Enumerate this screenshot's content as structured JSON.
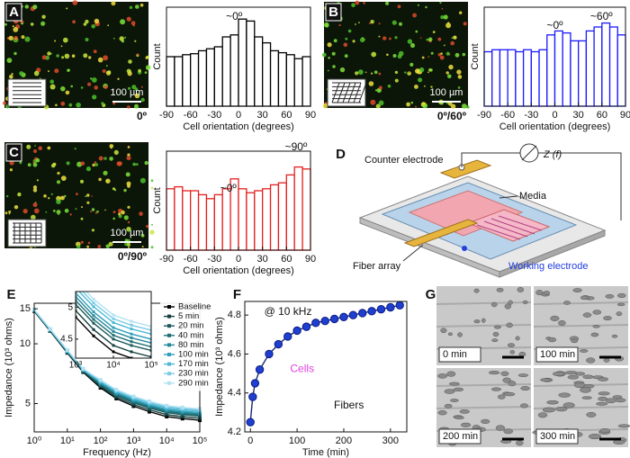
{
  "panel_letters": [
    "A",
    "B",
    "C",
    "D",
    "E",
    "F",
    "G"
  ],
  "images": [
    {
      "scale_bar": "100 µm",
      "pattern": "0º"
    },
    {
      "scale_bar": "100 µm",
      "pattern": "0º/60º"
    },
    {
      "scale_bar": "100 µm",
      "pattern": "0º/90º"
    }
  ],
  "diagram": {
    "counter_electrode": "Counter electrode",
    "impedance": "Z (f)",
    "media": "Media",
    "fiber_array": "Fiber array",
    "working_electrode": "Working electrode"
  },
  "micrographs": {
    "times": [
      "0 min",
      "100 min",
      "200 min",
      "300 min"
    ]
  },
  "chart_data": [
    {
      "type": "histogram",
      "bins": [
        -90,
        -80,
        -70,
        -60,
        -50,
        -40,
        -30,
        -20,
        -10,
        0,
        10,
        20,
        30,
        40,
        50,
        60,
        70,
        80,
        90
      ],
      "counts": [
        50,
        50,
        52,
        53,
        56,
        58,
        60,
        70,
        72,
        88,
        86,
        70,
        64,
        56,
        54,
        52,
        48,
        50
      ],
      "color": "#000000",
      "xlim": [
        -90,
        90
      ],
      "xticks": [
        -90,
        -60,
        -30,
        0,
        30,
        60,
        90
      ],
      "ylim": [
        0,
        100
      ],
      "xlabel": "Cell orientation (degrees)",
      "ylabel": "Count",
      "annotations": [
        "~0º"
      ]
    },
    {
      "type": "histogram",
      "bins": [
        -90,
        -80,
        -70,
        -60,
        -50,
        -40,
        -30,
        -20,
        -10,
        0,
        10,
        20,
        30,
        40,
        50,
        60,
        70,
        80,
        90
      ],
      "counts": [
        55,
        57,
        57,
        57,
        55,
        57,
        55,
        57,
        72,
        76,
        74,
        66,
        66,
        76,
        80,
        84,
        80,
        72
      ],
      "color": "#1a1aff",
      "xlim": [
        -90,
        90
      ],
      "xticks": [
        -90,
        -60,
        -30,
        0,
        30,
        60,
        90
      ],
      "ylim": [
        0,
        100
      ],
      "xlabel": "Cell orientation (degrees)",
      "ylabel": "Count",
      "annotations": [
        "~0º",
        "~60º"
      ]
    },
    {
      "type": "histogram",
      "bins": [
        -90,
        -80,
        -70,
        -60,
        -50,
        -40,
        -30,
        -20,
        -10,
        0,
        10,
        20,
        30,
        40,
        50,
        60,
        70,
        80,
        90
      ],
      "counts": [
        62,
        64,
        60,
        60,
        56,
        52,
        56,
        62,
        72,
        62,
        58,
        60,
        62,
        66,
        68,
        76,
        84,
        82
      ],
      "color": "#e52020",
      "xlim": [
        -90,
        90
      ],
      "xticks": [
        -90,
        -60,
        -30,
        0,
        30,
        60,
        90
      ],
      "ylim": [
        0,
        100
      ],
      "xlabel": "Cell orientation (degrees)",
      "ylabel": "Count",
      "annotations": [
        "~0º",
        "~90º"
      ]
    },
    {
      "type": "line",
      "x": [
        1,
        3,
        10,
        30,
        100,
        300,
        1000,
        3000,
        10000,
        30000,
        100000
      ],
      "series": [
        {
          "name": "Baseline",
          "color": "#000000",
          "values": [
            14.6,
            11.6,
            9.0,
            7.2,
            6.0,
            5.3,
            4.85,
            4.55,
            4.3,
            4.2,
            4.12
          ]
        },
        {
          "name": "5 min",
          "color": "#16403f",
          "values": [
            14.65,
            11.65,
            9.05,
            7.25,
            6.1,
            5.4,
            4.95,
            4.65,
            4.4,
            4.3,
            4.22
          ]
        },
        {
          "name": "20 min",
          "color": "#1c5a5c",
          "values": [
            14.7,
            11.7,
            9.1,
            7.3,
            6.2,
            5.5,
            5.05,
            4.75,
            4.5,
            4.4,
            4.32
          ]
        },
        {
          "name": "40 min",
          "color": "#1f7075",
          "values": [
            14.73,
            11.73,
            9.13,
            7.33,
            6.26,
            5.56,
            5.11,
            4.81,
            4.56,
            4.46,
            4.38
          ]
        },
        {
          "name": "80 min",
          "color": "#25889a",
          "values": [
            14.76,
            11.76,
            9.16,
            7.36,
            6.32,
            5.62,
            5.17,
            4.87,
            4.62,
            4.52,
            4.44
          ]
        },
        {
          "name": "100 min",
          "color": "#2f9fba",
          "values": [
            14.79,
            11.79,
            9.19,
            7.39,
            6.38,
            5.68,
            5.23,
            4.93,
            4.68,
            4.58,
            4.5
          ]
        },
        {
          "name": "170 min",
          "color": "#4cb8d4",
          "values": [
            14.83,
            11.83,
            9.23,
            7.43,
            6.46,
            5.76,
            5.31,
            5.01,
            4.76,
            4.66,
            4.58
          ]
        },
        {
          "name": "230 min",
          "color": "#7ccbe4",
          "values": [
            14.86,
            11.86,
            9.26,
            7.46,
            6.52,
            5.82,
            5.37,
            5.07,
            4.82,
            4.72,
            4.64
          ]
        },
        {
          "name": "290 min",
          "color": "#b0e2f2",
          "values": [
            14.89,
            11.89,
            9.29,
            7.49,
            6.58,
            5.88,
            5.43,
            5.13,
            4.88,
            4.78,
            4.7
          ]
        }
      ],
      "log_x": true,
      "log_y": true,
      "xlim": [
        1,
        100000
      ],
      "xticks": [
        {
          "value": 1,
          "label": "10⁰"
        },
        {
          "value": 10,
          "label": "10¹"
        },
        {
          "value": 100,
          "label": "10²"
        },
        {
          "value": 1000,
          "label": "10³"
        },
        {
          "value": 10000,
          "label": "10⁴"
        },
        {
          "value": 100000,
          "label": "10⁵"
        }
      ],
      "ylim": [
        3.6,
        16
      ],
      "yticks": [
        5,
        10,
        15
      ],
      "xlabel": "Frequency (Hz)",
      "ylabel": "Impedance (10³ ohms)",
      "legend": "upper right",
      "inset": {
        "xlim": [
          1000,
          100000
        ],
        "xticks": [
          {
            "value": 1000,
            "label": "10³"
          },
          {
            "value": 10000,
            "label": "10⁴"
          },
          {
            "value": 100000,
            "label": "10⁵"
          }
        ],
        "ylim": [
          4.2,
          5.25
        ],
        "yticks": [
          4.5,
          5
        ]
      }
    },
    {
      "type": "line",
      "x": [
        0,
        5,
        10,
        20,
        40,
        60,
        80,
        100,
        120,
        140,
        160,
        180,
        200,
        220,
        240,
        260,
        280,
        300,
        320
      ],
      "series": [
        {
          "color": "#1f3fd0",
          "values": [
            4.25,
            4.38,
            4.45,
            4.52,
            4.6,
            4.65,
            4.69,
            4.72,
            4.74,
            4.76,
            4.77,
            4.78,
            4.79,
            4.8,
            4.81,
            4.82,
            4.83,
            4.84,
            4.85
          ]
        }
      ],
      "xlim": [
        -12,
        335
      ],
      "xticks": [
        0,
        100,
        200,
        300
      ],
      "ylim": [
        4.2,
        4.87
      ],
      "yticks": [
        4.2,
        4.4,
        4.6,
        4.8
      ],
      "xlabel": "Time (min)",
      "ylabel": "Impedance (10³ ohms)",
      "annotations": [
        "@ 10 kHz",
        "Cells",
        "Fibers"
      ]
    }
  ]
}
